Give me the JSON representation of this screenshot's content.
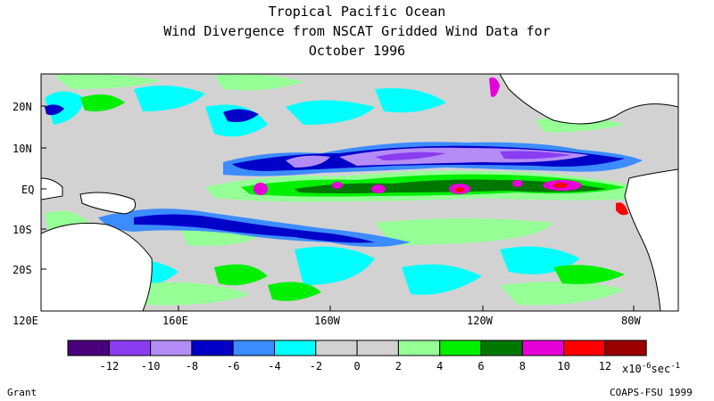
{
  "title": {
    "line1": "Tropical Pacific Ocean",
    "line2": "Wind Divergence from NSCAT Gridded Wind Data for",
    "line3": "October 1996"
  },
  "lat_labels": [
    "20N",
    "10N",
    "EQ",
    "10S",
    "20S"
  ],
  "lon_labels": [
    "120E",
    "160E",
    "160W",
    "120W",
    "80W"
  ],
  "colorbar": {
    "colors": [
      "#4a007a",
      "#8a3cf0",
      "#b48cf5",
      "#0000c8",
      "#3c8cff",
      "#00ffff",
      "#d2d2d2",
      "#d2d2d2",
      "#96ff96",
      "#00f000",
      "#007800",
      "#e600d7",
      "#ff0000",
      "#9b0000"
    ],
    "tick_labels": [
      "-12",
      "-10",
      "-8",
      "-6",
      "-4",
      "-2",
      "0",
      "2",
      "4",
      "6",
      "8",
      "10",
      "12"
    ],
    "units_base": "x10",
    "units_exp": "-6",
    "units_rest": "sec",
    "units_exp2": "-1"
  },
  "footer": {
    "left": "Grant",
    "right": "COAPS-FSU 1999"
  }
}
